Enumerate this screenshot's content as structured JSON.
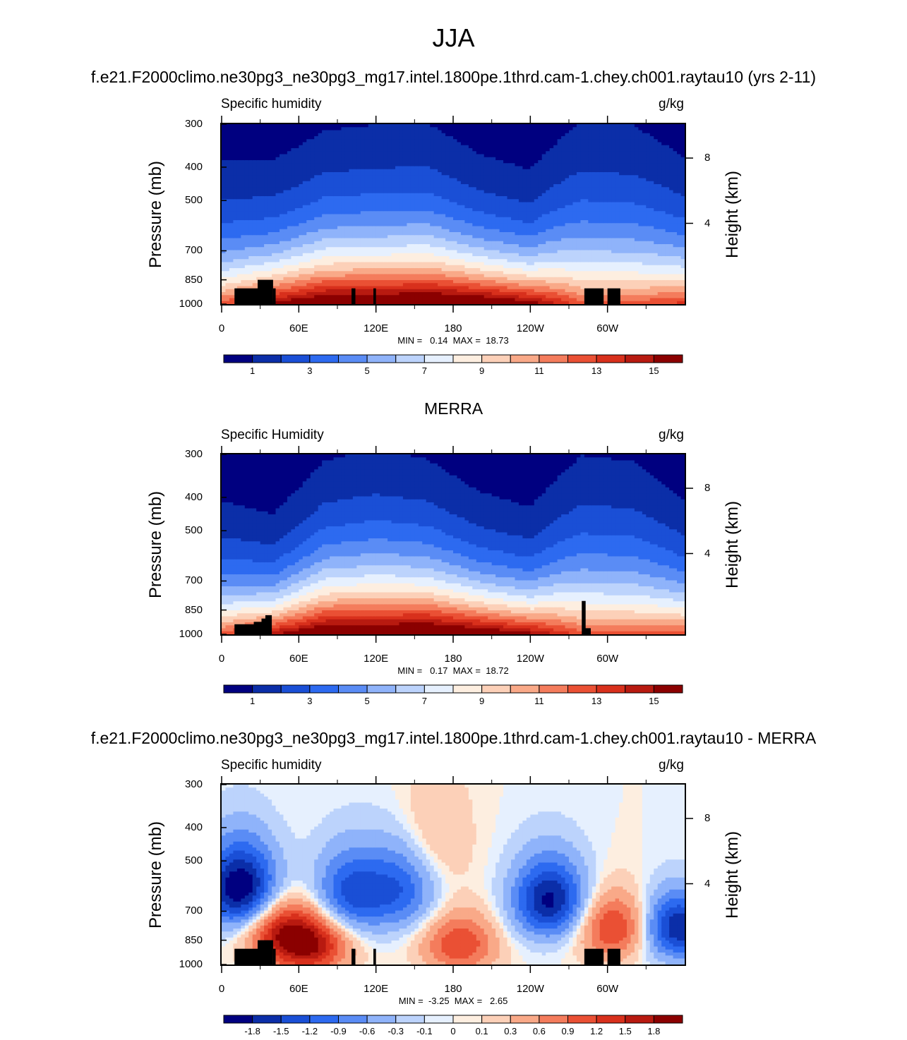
{
  "main_title": "JJA",
  "panels": [
    {
      "title": "f.e21.F2000climo.ne30pg3_ne30pg3_mg17.intel.1800pe.1thrd.cam-1.chey.ch001.raytau10 (yrs 2-11)",
      "left_label": "Specific humidity",
      "right_label": "g/kg",
      "minmax": "MIN =   0.14  MAX =  18.73",
      "colorbar_labels": [
        "1",
        "3",
        "5",
        "7",
        "9",
        "11",
        "13",
        "15"
      ]
    },
    {
      "title": "MERRA",
      "left_label": "Specific Humidity",
      "right_label": "g/kg",
      "minmax": "MIN =   0.17  MAX =  18.72",
      "colorbar_labels": [
        "1",
        "3",
        "5",
        "7",
        "9",
        "11",
        "13",
        "15"
      ]
    },
    {
      "title": "f.e21.F2000climo.ne30pg3_ne30pg3_mg17.intel.1800pe.1thrd.cam-1.chey.ch001.raytau10 - MERRA",
      "left_label": "Specific humidity",
      "right_label": "g/kg",
      "minmax": "MIN =  -3.25  MAX =   2.65",
      "colorbar_labels": [
        "-1.8",
        "-1.5",
        "-1.2",
        "-0.9",
        "-0.6",
        "-0.3",
        "-0.1",
        "0",
        "0.1",
        "0.3",
        "0.6",
        "0.9",
        "1.2",
        "1.5",
        "1.8"
      ]
    }
  ],
  "axes": {
    "ylabel_left": "Pressure (mb)",
    "ylabel_right": "Height (km)",
    "pressure_ticks": [
      "300",
      "400",
      "500",
      "700",
      "850",
      "1000"
    ],
    "height_ticks": [
      "8",
      "4"
    ],
    "x_ticks": [
      "0",
      "60E",
      "120E",
      "180",
      "120W",
      "60W"
    ]
  },
  "colors": {
    "abs_scale": [
      "#000080",
      "#0b2ea8",
      "#1a4fd6",
      "#2d6af0",
      "#5a8cf5",
      "#8fb3fa",
      "#bcd3fc",
      "#e6f0fe",
      "#fdeee0",
      "#fcd0b8",
      "#f9a988",
      "#f47c5c",
      "#ea5034",
      "#d8301c",
      "#b81a10",
      "#8b0000"
    ],
    "diff_scale": [
      "#000080",
      "#0b2ea8",
      "#1a4fd6",
      "#2d6af0",
      "#5a8cf5",
      "#8fb3fa",
      "#bcd3fc",
      "#e6f0fe",
      "#fdeee0",
      "#fcd0b8",
      "#f9a988",
      "#f47c5c",
      "#ea5034",
      "#d8301c",
      "#b81a10",
      "#8b0000"
    ],
    "mask": "#000000"
  },
  "chart_data": [
    {
      "type": "heatmap",
      "title": "f.e21.F2000climo.ne30pg3_ne30pg3_mg17.intel.1800pe.1thrd.cam-1.chey.ch001.raytau10 (yrs 2-11)",
      "variable": "Specific humidity",
      "units": "g/kg",
      "xlabel": "",
      "ylabel": "Pressure (mb)",
      "y2label": "Height (km)",
      "xlim": [
        0,
        360
      ],
      "ylim": [
        1000,
        300
      ],
      "levels": [
        1,
        2,
        3,
        4,
        5,
        6,
        7,
        8,
        9,
        10,
        11,
        12,
        13,
        14,
        15
      ],
      "min": 0.14,
      "max": 18.73,
      "surface_hq": [
        12.5,
        15.5,
        17.5,
        17.5,
        18.0,
        17.5,
        16.0,
        12.5,
        12.5,
        13.5
      ],
      "profile_ht": [
        2.8,
        2.6,
        3.0,
        3.1,
        3.1,
        2.6,
        2.4,
        3.6,
        3.5,
        2.8
      ],
      "profile_x": [
        0,
        40,
        80,
        120,
        160,
        200,
        240,
        280,
        320,
        360
      ]
    },
    {
      "type": "heatmap",
      "title": "MERRA",
      "variable": "Specific Humidity",
      "units": "g/kg",
      "xlabel": "",
      "ylabel": "Pressure (mb)",
      "y2label": "Height (km)",
      "xlim": [
        0,
        360
      ],
      "ylim": [
        1000,
        300
      ],
      "levels": [
        1,
        2,
        3,
        4,
        5,
        6,
        7,
        8,
        9,
        10,
        11,
        12,
        13,
        14,
        15
      ],
      "min": 0.17,
      "max": 18.72,
      "surface_hq": [
        12.5,
        15.0,
        17.5,
        17.5,
        18.0,
        17.0,
        15.5,
        12.5,
        12.5,
        13.0
      ],
      "profile_ht": [
        2.6,
        2.2,
        3.0,
        3.2,
        3.0,
        2.5,
        2.3,
        3.5,
        3.4,
        2.6
      ],
      "profile_x": [
        0,
        40,
        80,
        120,
        160,
        200,
        240,
        280,
        320,
        360
      ]
    },
    {
      "type": "heatmap",
      "title": "f.e21.F2000climo.ne30pg3_ne30pg3_mg17.intel.1800pe.1thrd.cam-1.chey.ch001.raytau10 - MERRA",
      "variable": "Specific humidity",
      "units": "g/kg",
      "xlabel": "",
      "ylabel": "Pressure (mb)",
      "y2label": "Height (km)",
      "xlim": [
        0,
        360
      ],
      "ylim": [
        1000,
        300
      ],
      "levels": [
        -1.8,
        -1.5,
        -1.2,
        -0.9,
        -0.6,
        -0.3,
        -0.1,
        0,
        0.1,
        0.3,
        0.6,
        0.9,
        1.2,
        1.5,
        1.8
      ],
      "min": -3.25,
      "max": 2.65,
      "anomalies": [
        {
          "lon": 15,
          "p": 600,
          "value": -2.2
        },
        {
          "lon": 45,
          "p": 800,
          "value": 1.4
        },
        {
          "lon": 70,
          "p": 880,
          "value": 1.6
        },
        {
          "lon": 100,
          "p": 620,
          "value": -1.3
        },
        {
          "lon": 140,
          "p": 600,
          "value": -1.1
        },
        {
          "lon": 165,
          "p": 430,
          "value": 0.4
        },
        {
          "lon": 185,
          "p": 870,
          "value": 1.2
        },
        {
          "lon": 255,
          "p": 650,
          "value": -1.9
        },
        {
          "lon": 305,
          "p": 780,
          "value": 1.3
        },
        {
          "lon": 355,
          "p": 780,
          "value": -1.8
        }
      ]
    }
  ]
}
